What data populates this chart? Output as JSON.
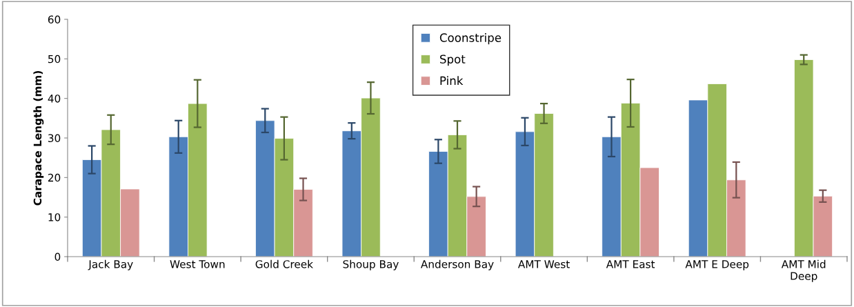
{
  "chart_data": {
    "type": "bar",
    "ylabel": "Carapace Length (mm)",
    "categories": [
      "Jack Bay",
      "West Town",
      "Gold Creek",
      "Shoup Bay",
      "Anderson Bay",
      "AMT West",
      "AMT East",
      "AMT E Deep",
      "AMT Mid\nDeep"
    ],
    "series": [
      {
        "name": "Coonstripe",
        "color": "#4f81bd",
        "values": [
          24.5,
          30.3,
          34.4,
          31.8,
          26.6,
          31.6,
          30.3,
          39.6,
          null
        ],
        "errors": [
          3.5,
          4.1,
          3.0,
          2.0,
          3.0,
          3.5,
          5.0,
          null,
          null
        ]
      },
      {
        "name": "Spot",
        "color": "#9bbb59",
        "values": [
          32.1,
          38.7,
          29.9,
          40.1,
          30.8,
          36.2,
          38.8,
          43.7,
          49.8
        ],
        "errors": [
          3.7,
          6.0,
          5.4,
          4.0,
          3.5,
          2.5,
          6.0,
          null,
          1.2
        ]
      },
      {
        "name": "Pink",
        "color": "#d99694",
        "values": [
          17.1,
          null,
          17.0,
          null,
          15.2,
          null,
          22.5,
          19.4,
          15.3
        ],
        "errors": [
          null,
          null,
          2.8,
          null,
          2.5,
          null,
          null,
          4.5,
          1.5
        ]
      }
    ],
    "ylim": [
      0,
      60
    ],
    "yticks": [
      0,
      10,
      20,
      30,
      40,
      50,
      60
    ],
    "grid": false,
    "legend": "top"
  }
}
